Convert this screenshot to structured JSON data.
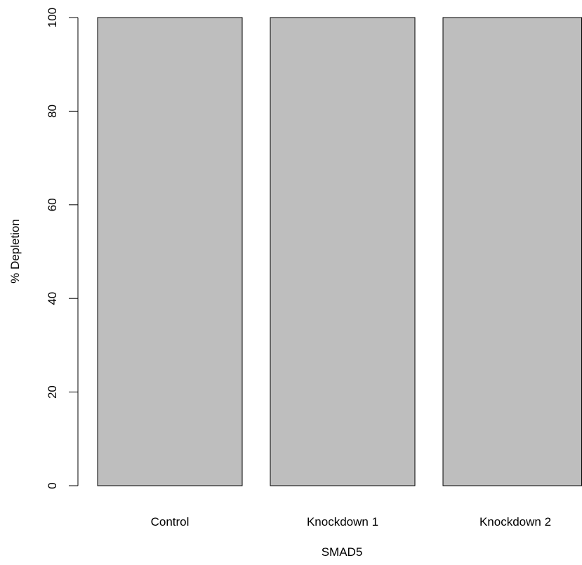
{
  "chart_data": {
    "type": "bar",
    "categories": [
      "Control",
      "Knockdown 1",
      "Knockdown 2"
    ],
    "values": [
      100,
      100,
      100
    ],
    "xlabel": "SMAD5",
    "ylabel": "% Depletion",
    "ylim": [
      0,
      100
    ],
    "yticks": [
      0,
      20,
      40,
      60,
      80,
      100
    ],
    "grid": false,
    "legend": "none",
    "colors": {
      "bar_fill": "#bebebe",
      "bar_stroke": "#000000",
      "axis": "#000000"
    }
  }
}
